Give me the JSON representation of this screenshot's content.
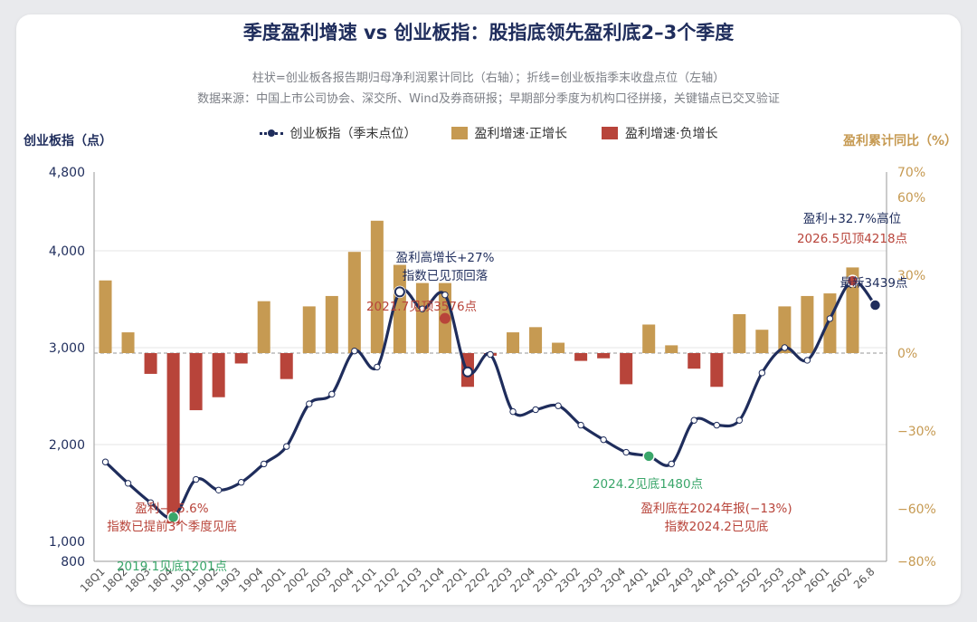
{
  "title": "季度盈利增速 vs 创业板指：股指底领先盈利底2–3个季度",
  "subtitle1": "柱状=创业板各报告期归母净利润累计同比（右轴）；折线=创业板指季末收盘点位（左轴）",
  "subtitle2": "数据来源：中国上市公司协会、深交所、Wind及券商研报；早期部分季度为机构口径拼接，关键锚点已交叉验证",
  "legend": {
    "line": "创业板指（季末点位）",
    "pos": "盈利增速·正增长",
    "neg": "盈利增速·负增长"
  },
  "axis_left_label": "创业板指（点）",
  "axis_right_label": "盈利累计同比（%）",
  "colors": {
    "navy": "#1f2d5c",
    "gold": "#c69a52",
    "red": "#b8443a",
    "green": "#3aa66a"
  },
  "chart_data": {
    "type": "bar+line",
    "categories": [
      "18Q1",
      "18Q2",
      "18Q3",
      "18Q4",
      "19Q1",
      "19Q2",
      "19Q3",
      "19Q4",
      "20Q1",
      "20Q2",
      "20Q3",
      "20Q4",
      "21Q1",
      "21Q2",
      "21Q3",
      "21Q4",
      "22Q1",
      "22Q2",
      "22Q3",
      "22Q4",
      "23Q1",
      "23Q2",
      "23Q3",
      "23Q4",
      "24Q1",
      "24Q2",
      "24Q3",
      "24Q4",
      "25Q1",
      "25Q2",
      "25Q3",
      "25Q4",
      "26Q1",
      "26Q2",
      "26.8"
    ],
    "left_ticks": [
      800,
      1000,
      2000,
      3000,
      4000,
      4800
    ],
    "left_ylim": [
      800,
      4800
    ],
    "right_ticks": [
      "70%",
      "60%",
      "30%",
      "0%",
      "−30%",
      "−60%",
      "−80%"
    ],
    "right_ylim": [
      -80,
      70
    ],
    "bar_series": {
      "name": "盈利累计同比",
      "values": [
        28,
        8,
        -8,
        -65.6,
        -22,
        -17,
        -4,
        20,
        -10,
        18,
        22,
        39,
        51,
        34,
        27,
        27,
        -13,
        -1,
        8,
        10,
        4,
        -3,
        -2,
        -12,
        11,
        3,
        -6,
        -13,
        15,
        9,
        18,
        22,
        23,
        33,
        null
      ]
    },
    "line_series": {
      "name": "创业板指",
      "values": [
        1820,
        1600,
        1400,
        1250,
        1640,
        1530,
        1610,
        1800,
        1980,
        2420,
        2520,
        2966,
        2800,
        3576,
        3400,
        3545,
        2750,
        2930,
        2340,
        2360,
        2400,
        2200,
        2050,
        1920,
        1880,
        1800,
        2250,
        2200,
        2250,
        2740,
        3000,
        2870,
        3300,
        3690,
        3439
      ]
    },
    "annotations": [
      {
        "text": "盈利高增长+27%",
        "idx": 14,
        "color": "navy"
      },
      {
        "text": "指数已见顶回落",
        "idx": 14,
        "color": "navy"
      },
      {
        "text": "2021.7见顶3576点",
        "idx": 13,
        "color": "red"
      },
      {
        "text": "盈利−65.6%",
        "idx": 3,
        "color": "red"
      },
      {
        "text": "指数已提前3个季度见底",
        "idx": 3,
        "color": "red"
      },
      {
        "text": "2019.1见底1201点",
        "idx": 3,
        "color": "green"
      },
      {
        "text": "2024.2见底1480点",
        "idx": 24,
        "color": "green"
      },
      {
        "text": "盈利底在2024年报(−13%)",
        "idx": 27,
        "color": "red"
      },
      {
        "text": "指数2024.2已见底",
        "idx": 27,
        "color": "red"
      },
      {
        "text": "盈利+32.7%高位",
        "idx": 33,
        "color": "navy"
      },
      {
        "text": "2026.5见顶4218点",
        "idx": 33,
        "color": "red"
      },
      {
        "text": "最新3439点",
        "idx": 34,
        "color": "navy"
      }
    ]
  }
}
